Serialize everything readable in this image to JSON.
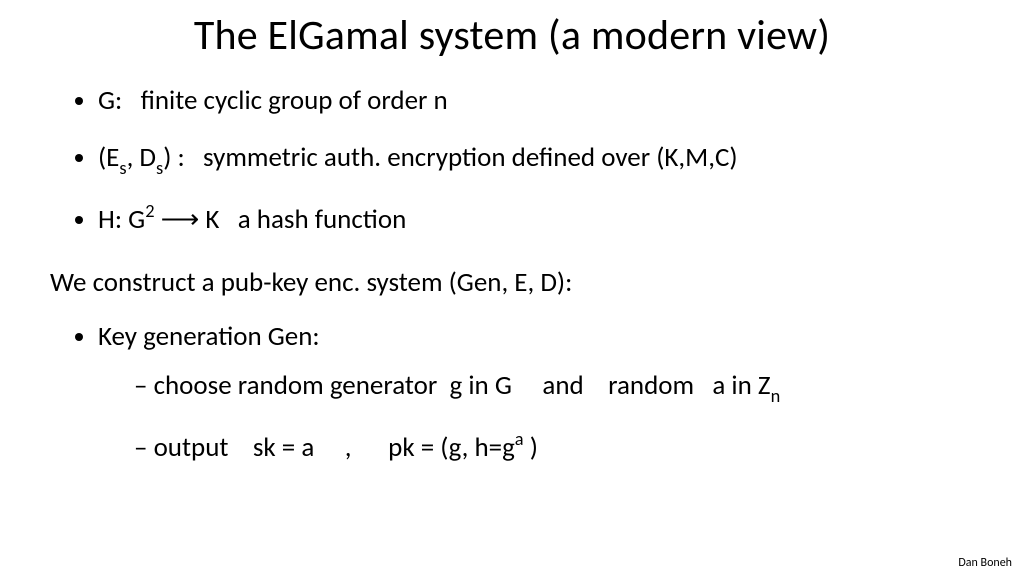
{
  "title": "The ElGamal system  (a modern view)",
  "b1_pre": "G:   finite cyclic group of order n",
  "b2_p1": "(E",
  "b2_s1": "s",
  "b2_p2": ", D",
  "b2_s2": "s",
  "b2_p3": ") :   symmetric auth. encryption defined over (K,M,C)",
  "b3_p1": "H: G",
  "b3_sup": "2",
  "b3_p2": " ⟶ K   a hash function",
  "intro": "We construct a pub-key enc. system (Gen, E, D):",
  "kg": "Key generation Gen:",
  "d1_p1": "choose random generator  g in G     and    random   a in Z",
  "d1_sub": "n",
  "d2_p1": "output    sk = a     ,      pk = (g, h=g",
  "d2_sup": "a",
  "d2_p2": " )",
  "footer": "Dan Boneh"
}
